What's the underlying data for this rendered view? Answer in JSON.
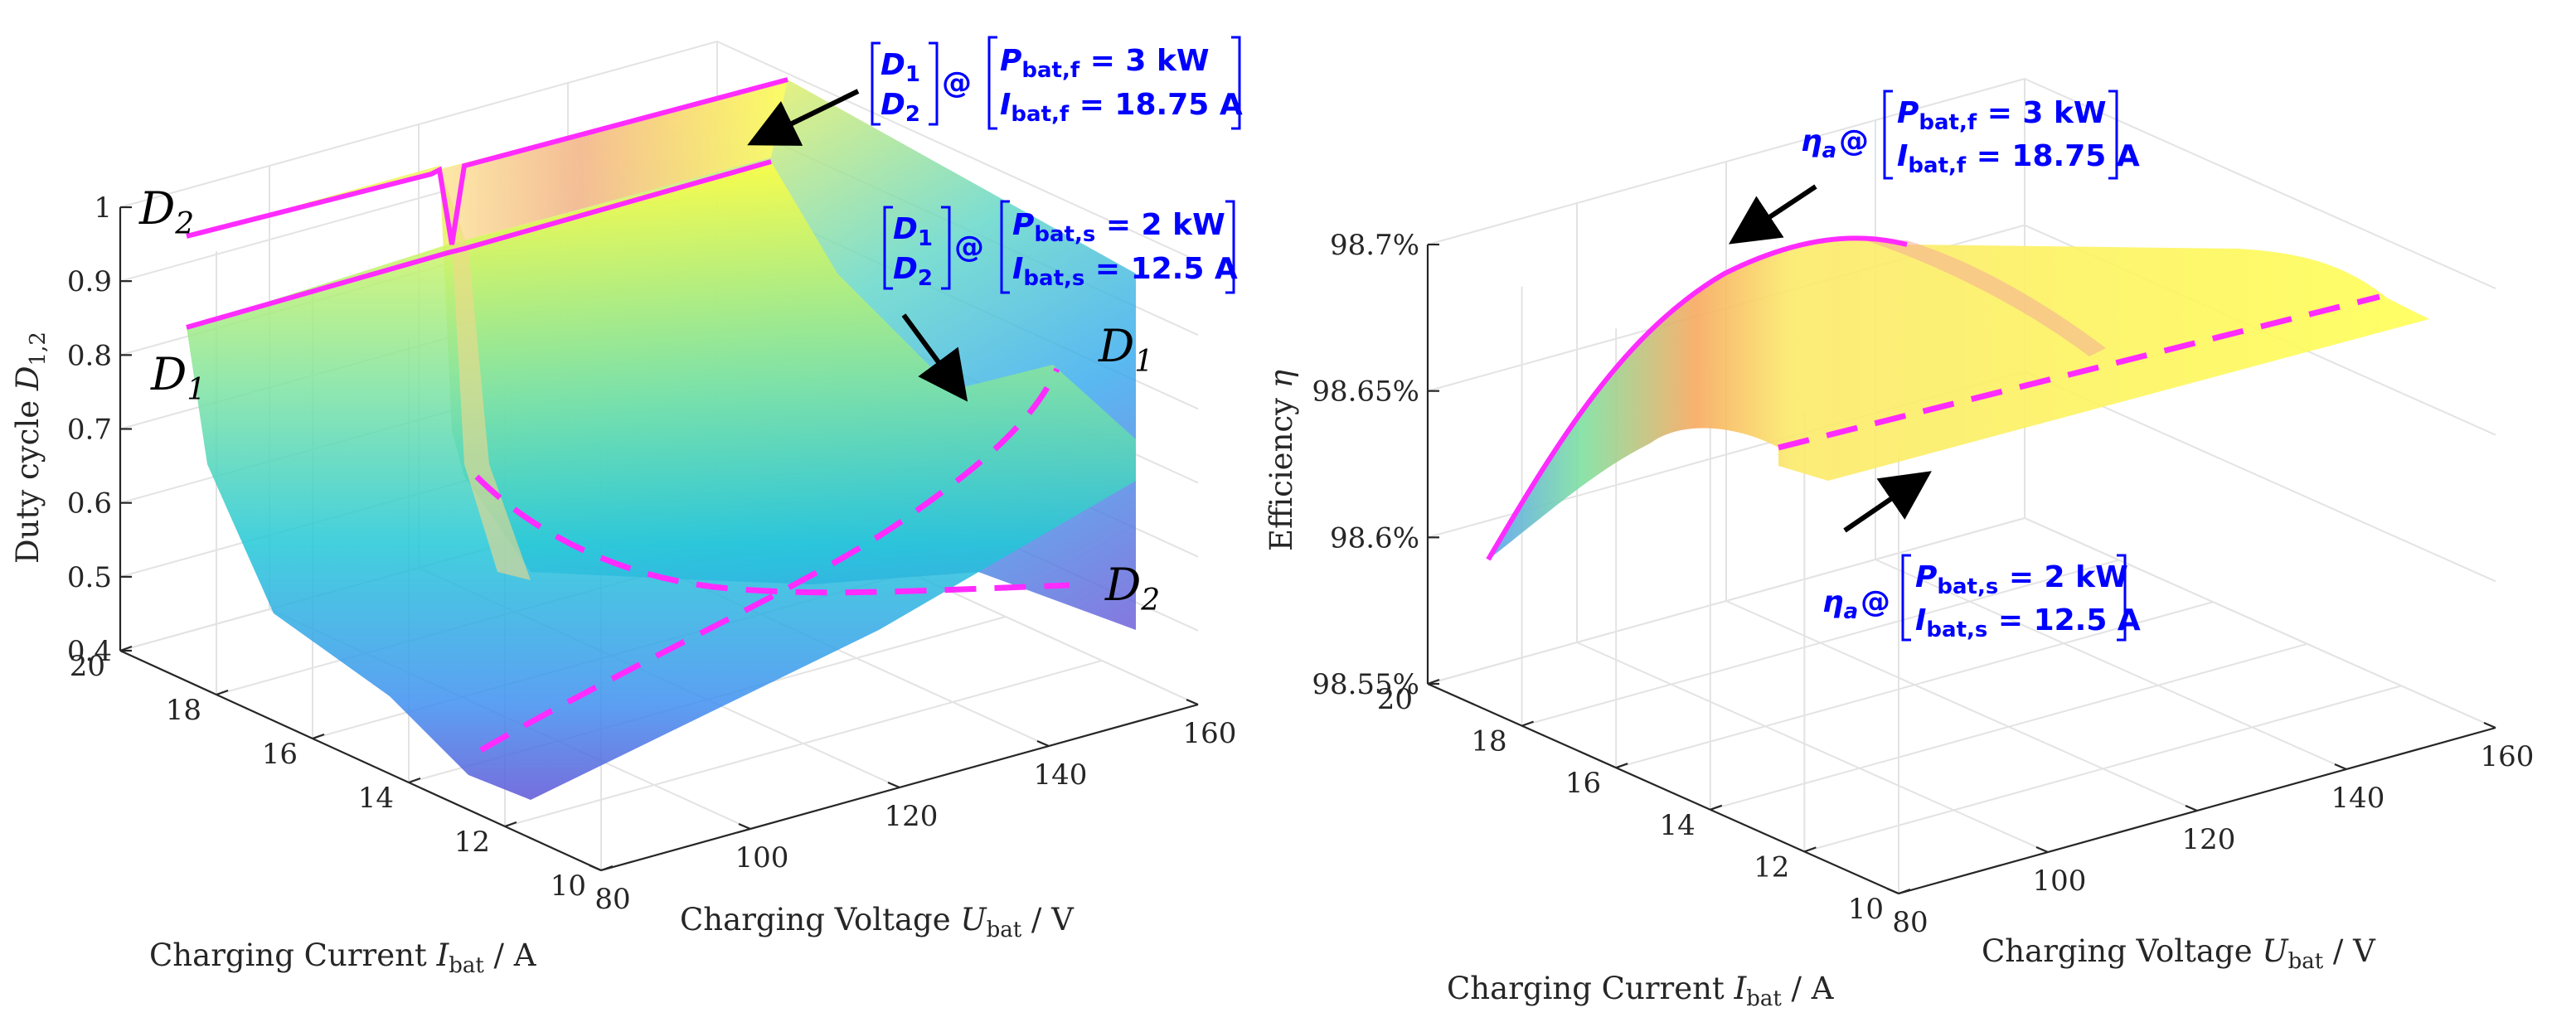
{
  "chart_data": [
    {
      "type": "surface3d",
      "zlabel": "Duty cycle D1,2",
      "xlabel": "Charging Voltage Ubat / V",
      "ylabel": "Charging Current Ibat / A",
      "xlim": [
        80,
        160
      ],
      "ylim": [
        10,
        20
      ],
      "zlim": [
        0.4,
        1.0
      ],
      "xticks": [
        "80",
        "100",
        "120",
        "140",
        "160"
      ],
      "yticks": [
        "10",
        "12",
        "14",
        "16",
        "18",
        "20"
      ],
      "zticks": [
        "0.4",
        "0.5",
        "0.6",
        "0.7",
        "0.8",
        "0.9",
        "1"
      ],
      "series": [
        {
          "name": "D1",
          "label": "D",
          "sub": "1",
          "near_corner": 0.84,
          "far_corner": 0.69,
          "min_value": 0.45
        },
        {
          "name": "D2",
          "label": "D",
          "sub": "2",
          "near_corner": 0.97,
          "far_corner": 0.48,
          "min_value": 0.45
        }
      ],
      "annotations": [
        {
          "id": "fast",
          "line1": "D1",
          "line2": "D2",
          "cond1": "Pbat,f = 3 kW",
          "cond2": "Ibat,f = 18.75 A",
          "power_kW": 3,
          "current_A": 18.75
        },
        {
          "id": "slow",
          "line1": "D1",
          "line2": "D2",
          "cond1": "Pbat,s = 2 kW",
          "cond2": "Ibat,s = 12.5 A",
          "power_kW": 2,
          "current_A": 12.5
        }
      ]
    },
    {
      "type": "surface3d",
      "zlabel": "Efficiency η",
      "xlabel": "Charging Voltage Ubat / V",
      "ylabel": "Charging Current Ibat / A",
      "xlim": [
        80,
        160
      ],
      "ylim": [
        10,
        20
      ],
      "zlim": [
        98.55,
        98.7
      ],
      "xticks": [
        "80",
        "100",
        "120",
        "140",
        "160"
      ],
      "yticks": [
        "10",
        "12",
        "14",
        "16",
        "18",
        "20"
      ],
      "zticks": [
        "98.55%",
        "98.6%",
        "98.65%",
        "98.7%"
      ],
      "series": [
        {
          "name": "eta_a",
          "near_corner": 98.59,
          "peak": 98.698,
          "far_corner": 98.66
        }
      ],
      "annotations": [
        {
          "id": "fast",
          "label": "ηa",
          "cond1": "Pbat,f = 3 kW",
          "cond2": "Ibat,f = 18.75 A",
          "power_kW": 3,
          "current_A": 18.75
        },
        {
          "id": "slow",
          "label": "ηa",
          "cond1": "Pbat,s = 2 kW",
          "cond2": "Ibat,s = 12.5 A",
          "power_kW": 2,
          "current_A": 12.5
        }
      ]
    }
  ],
  "text": {
    "left": {
      "zlabel_main": "Duty cycle ",
      "zlabel_var": "D",
      "zlabel_sub": "1,2",
      "xlabel_main": "Charging Voltage ",
      "xlabel_var": "U",
      "xlabel_sub": "bat",
      "xlabel_unit": " / V",
      "ylabel_main": "Charging Current ",
      "ylabel_var": "I",
      "ylabel_sub": "bat",
      "ylabel_unit": " / A",
      "ann_fast_sym": "@",
      "ann_fast_d1": "D",
      "ann_fast_d1sub": "1",
      "ann_fast_d2": "D",
      "ann_fast_d2sub": "2",
      "ann_fast_p": "P",
      "ann_fast_psub": "bat,f",
      "ann_fast_pval": " = 3 kW",
      "ann_fast_i": "I",
      "ann_fast_isub": "bat,f",
      "ann_fast_ival": " = 18.75 A",
      "ann_slow_sym": "@",
      "ann_slow_p": "P",
      "ann_slow_psub": "bat,s",
      "ann_slow_pval": " = 2 kW",
      "ann_slow_i": "I",
      "ann_slow_isub": "bat,s",
      "ann_slow_ival": " = 12.5 A",
      "surf_d": "D",
      "surf_sub1": "1",
      "surf_sub2": "2"
    },
    "right": {
      "zlabel_main": "Efficiency ",
      "zlabel_var": "η",
      "eta": "η",
      "eta_sub": "a",
      "sym": "@"
    }
  }
}
